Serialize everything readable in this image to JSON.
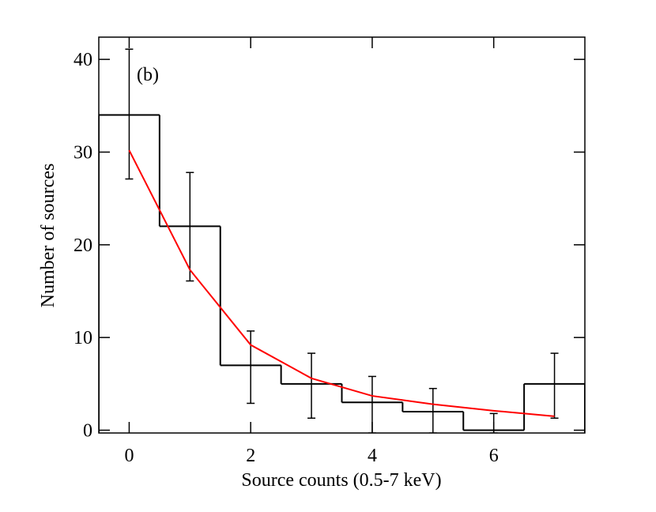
{
  "chart_data": {
    "type": "histogram",
    "xlabel": "Source counts (0.5-7 keV)",
    "ylabel": "Number of sources",
    "annotation": "(b)",
    "bins": [
      -0.5,
      0.5,
      1.5,
      2.5,
      3.5,
      4.5,
      5.5,
      6.5,
      7.5
    ],
    "values": [
      34,
      22,
      7,
      5,
      3,
      2,
      0,
      5
    ],
    "color": "#000000",
    "error_low": [
      27.1,
      16.1,
      2.9,
      1.3,
      -0.3,
      -0.3,
      -0.3,
      1.3
    ],
    "error_high": [
      41.1,
      27.8,
      10.7,
      8.3,
      5.8,
      4.5,
      1.8,
      8.3
    ],
    "model": {
      "x": [
        0,
        1,
        2,
        3,
        4,
        5,
        6,
        7
      ],
      "values": [
        30.2,
        17.3,
        9.2,
        5.6,
        3.7,
        2.8,
        2.1,
        1.5
      ],
      "color": "#ff0000"
    },
    "xlim": [
      -0.5,
      7.5
    ],
    "xticks": [
      0,
      2,
      4,
      6
    ],
    "ylim": [
      -0.3,
      42.4
    ],
    "yticks": [
      0,
      10,
      20,
      30,
      40
    ]
  }
}
